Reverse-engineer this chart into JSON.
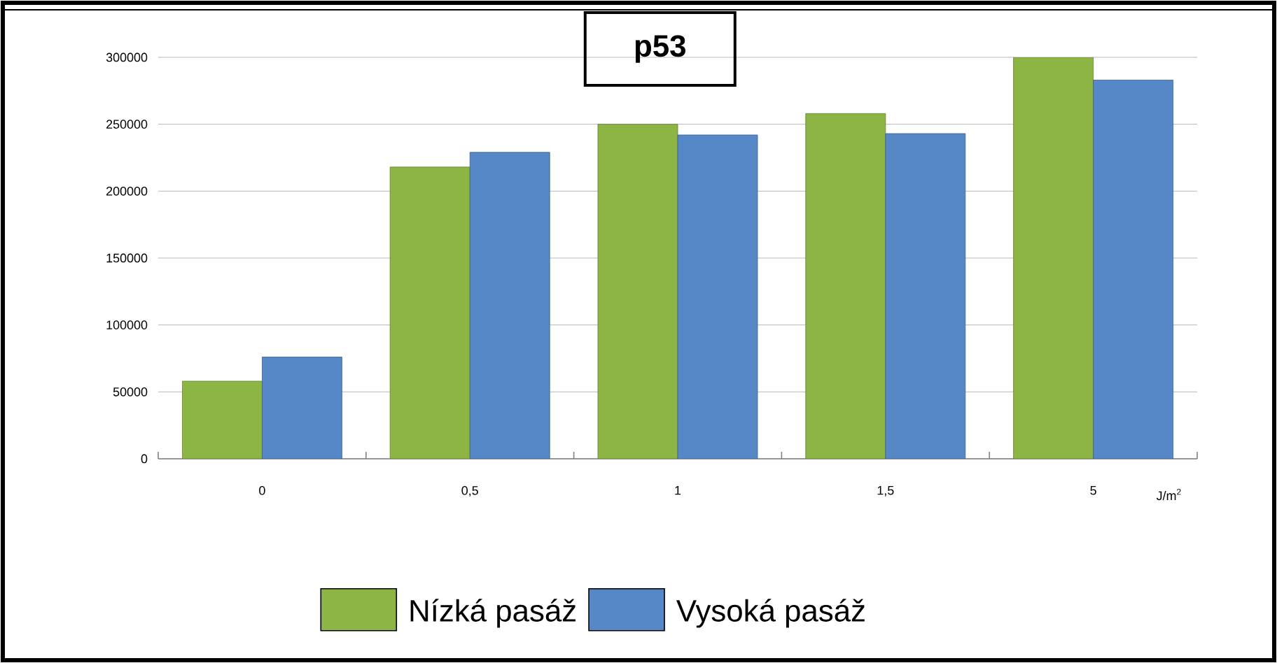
{
  "chart_data": {
    "type": "bar",
    "title": "p53",
    "xlabel": "J/m$^{2}$",
    "categories": [
      "0",
      "0,5",
      "1",
      "1,5",
      "5"
    ],
    "series": [
      {
        "name": "Nízká pasáž",
        "color": "#8db543",
        "values": [
          58000,
          218000,
          250000,
          258000,
          300000
        ]
      },
      {
        "name": "Vysoká pasáž",
        "color": "#5687c7",
        "values": [
          76000,
          229000,
          242000,
          243000,
          283000
        ]
      }
    ],
    "ylim": [
      0,
      300000
    ],
    "yticks": [
      0,
      50000,
      100000,
      150000,
      200000,
      250000,
      300000
    ],
    "grid": "y",
    "legend": "bottom"
  }
}
